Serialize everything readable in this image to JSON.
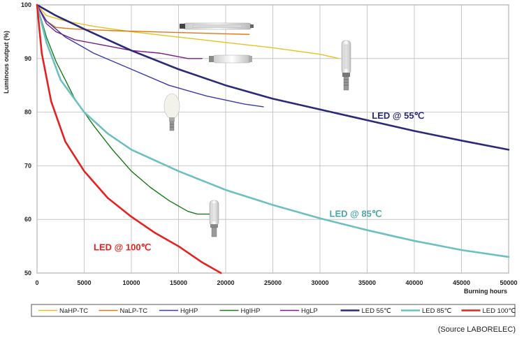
{
  "chart_data": {
    "type": "line",
    "xlabel": "Burning hours",
    "ylabel": "Luminous output (%)",
    "xlim": [
      0,
      50000
    ],
    "ylim": [
      50,
      100
    ],
    "x_ticks": [
      "0",
      "5000",
      "10000",
      "15000",
      "20000",
      "25000",
      "30000",
      "35000",
      "40000",
      "45000",
      "50000"
    ],
    "y_ticks": [
      "50",
      "60",
      "70",
      "80",
      "90",
      "100"
    ],
    "grid": true,
    "legend_position": "bottom",
    "series": [
      {
        "name": "NaHP-TC",
        "color": "#e8c020",
        "x": [
          0,
          1000,
          3000,
          6000,
          10000,
          15000,
          20000,
          25000,
          30000,
          32000
        ],
        "y": [
          100,
          98,
          97,
          96,
          95,
          94,
          93,
          92,
          90.8,
          90
        ]
      },
      {
        "name": "NaLP-TC",
        "color": "#e07818",
        "x": [
          0,
          1000,
          2000,
          4000,
          8000,
          12000,
          16000,
          20000,
          22500
        ],
        "y": [
          100,
          97,
          95.8,
          95.5,
          95.2,
          95,
          94.8,
          94.6,
          94.5
        ]
      },
      {
        "name": "HgHP",
        "color": "#3a3aaa",
        "x": [
          0,
          1000,
          3000,
          6000,
          10000,
          14000,
          18000,
          22000,
          24000
        ],
        "y": [
          100,
          97,
          94,
          91,
          88,
          85,
          83,
          81.5,
          81
        ]
      },
      {
        "name": "HgIHP",
        "color": "#1a7a1a",
        "x": [
          0,
          1000,
          2000,
          4000,
          6000,
          8000,
          10000,
          12000,
          14000,
          16000,
          17000,
          18000,
          18500
        ],
        "y": [
          100,
          94,
          89.5,
          82.5,
          77.5,
          73,
          69,
          66,
          63.5,
          61.5,
          61,
          61,
          61
        ]
      },
      {
        "name": "HgLP",
        "color": "#7a1a8a",
        "x": [
          0,
          1000,
          2000,
          4000,
          7000,
          10000,
          13000,
          16000,
          17500
        ],
        "y": [
          100,
          96.5,
          95,
          93.5,
          92.5,
          91.5,
          91,
          90,
          90
        ]
      },
      {
        "name": "LED 55℃",
        "color": "#2a2a7a",
        "x": [
          0,
          2000,
          5000,
          10000,
          15000,
          20000,
          25000,
          30000,
          35000,
          40000,
          45000,
          50000
        ],
        "y": [
          100,
          98,
          95.5,
          91.5,
          88,
          85,
          82.5,
          80.5,
          78.5,
          76.5,
          74.7,
          73
        ]
      },
      {
        "name": "LED 85℃",
        "color": "#6cc0c0",
        "x": [
          0,
          1000,
          2500,
          5000,
          7500,
          10000,
          12500,
          15000,
          20000,
          25000,
          30000,
          35000,
          40000,
          45000,
          50000
        ],
        "y": [
          100,
          93,
          86,
          80,
          76,
          73,
          71,
          69,
          65.5,
          62.7,
          60.2,
          58,
          56,
          54.3,
          53
        ]
      },
      {
        "name": "LED 100℃",
        "color": "#e82020",
        "x": [
          0,
          500,
          1500,
          3000,
          5000,
          7500,
          10000,
          12500,
          15000,
          17500,
          19500
        ],
        "y": [
          100,
          91,
          82,
          74.5,
          69,
          64,
          60.5,
          57.5,
          55,
          52,
          50
        ]
      }
    ],
    "annotations": [
      {
        "text": "LED @ 55℃",
        "color": "#2a2a7a",
        "x": 35500,
        "y": 78.8
      },
      {
        "text": "LED @ 85℃",
        "color": "#4aa8a8",
        "x": 31000,
        "y": 60.5
      },
      {
        "text": "LED @ 100℃",
        "color": "#e82020",
        "x": 6000,
        "y": 54.2
      }
    ]
  },
  "source": "(Source LABORELEC)"
}
